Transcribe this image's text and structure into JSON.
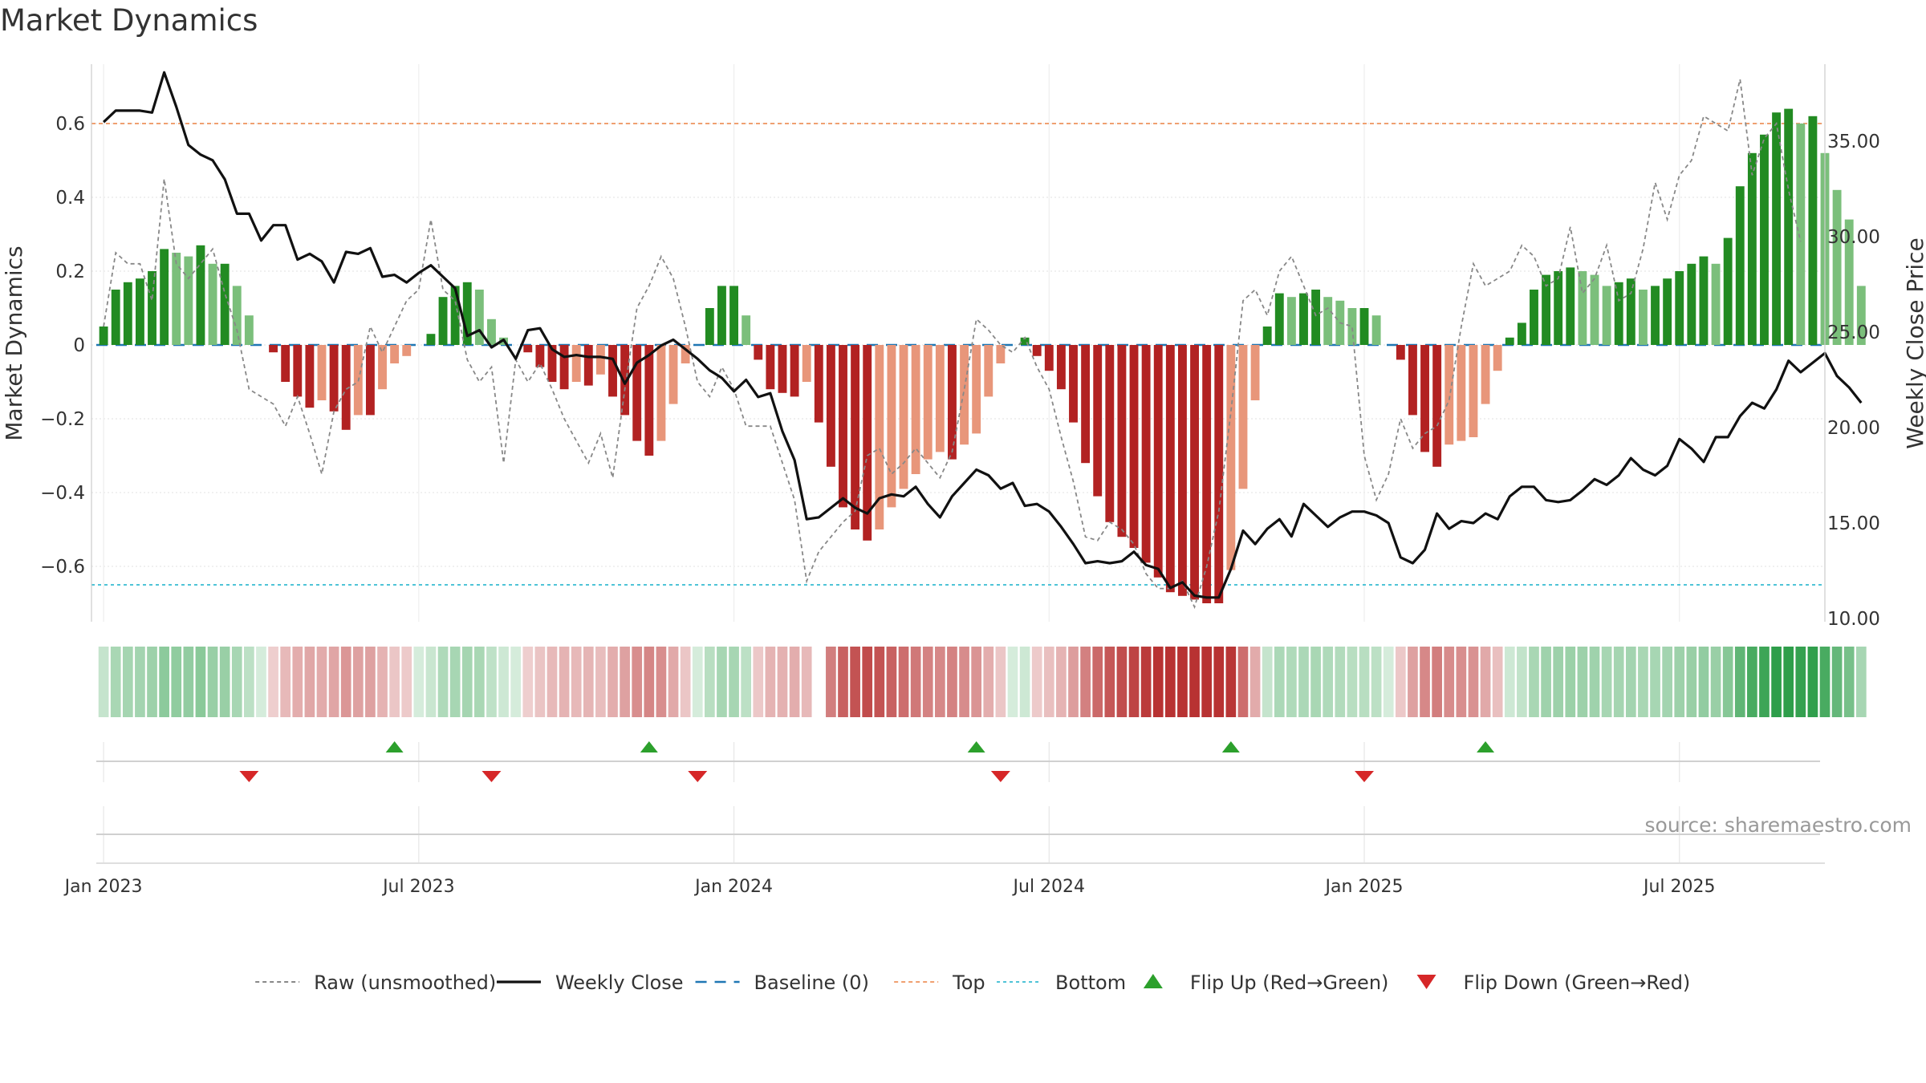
{
  "title": "Market Dynamics",
  "source": "source: sharemaestro.com",
  "chart_data": {
    "type": "bar",
    "ylabel_left": "Market Dynamics",
    "ylabel_right": "Weekly Close Price",
    "ylim_left": [
      -0.75,
      0.75
    ],
    "ylim_right": [
      10,
      38
    ],
    "left_ticks": [
      {
        "v": 0.6,
        "label": "0.6"
      },
      {
        "v": 0.4,
        "label": "0.4"
      },
      {
        "v": 0.2,
        "label": "0.2"
      },
      {
        "v": 0,
        "label": "0"
      },
      {
        "v": -0.2,
        "label": "−0.2"
      },
      {
        "v": -0.4,
        "label": "−0.4"
      },
      {
        "v": -0.6,
        "label": "−0.6"
      }
    ],
    "right_ticks": [
      {
        "v": 35,
        "label": "35.00"
      },
      {
        "v": 30,
        "label": "30.00"
      },
      {
        "v": 25,
        "label": "25.00"
      },
      {
        "v": 20,
        "label": "20.00"
      },
      {
        "v": 15,
        "label": "15.00"
      },
      {
        "v": 10,
        "label": "10.00"
      }
    ],
    "x_ticks": [
      {
        "week": 0,
        "label": "Jan 2023"
      },
      {
        "week": 26,
        "label": "Jul 2023"
      },
      {
        "week": 52,
        "label": "Jan 2024"
      },
      {
        "week": 78,
        "label": "Jul 2024"
      },
      {
        "week": 104,
        "label": "Jan 2025"
      },
      {
        "week": 130,
        "label": "Jul 2025"
      }
    ],
    "x_range_weeks": [
      -1,
      142
    ],
    "top_level": 0.6,
    "bottom_level": -0.65,
    "baseline": 0,
    "momentum": [
      0.05,
      0.15,
      0.17,
      0.18,
      0.2,
      0.26,
      0.25,
      0.24,
      0.27,
      0.22,
      0.22,
      0.16,
      0.08,
      0,
      -0.02,
      -0.1,
      -0.14,
      -0.17,
      -0.15,
      -0.18,
      -0.23,
      -0.19,
      -0.19,
      -0.12,
      -0.05,
      -0.03,
      0,
      0.03,
      0.13,
      0.16,
      0.17,
      0.15,
      0.07,
      0.02,
      0,
      -0.02,
      -0.06,
      -0.1,
      -0.12,
      -0.1,
      -0.11,
      -0.08,
      -0.14,
      -0.19,
      -0.26,
      -0.3,
      -0.26,
      -0.16,
      -0.05,
      0,
      0.1,
      0.16,
      0.16,
      0.08,
      -0.04,
      -0.12,
      -0.13,
      -0.14,
      -0.1,
      -0.21,
      -0.33,
      -0.44,
      -0.5,
      -0.53,
      -0.5,
      -0.44,
      -0.39,
      -0.35,
      -0.31,
      -0.29,
      -0.31,
      -0.27,
      -0.24,
      -0.14,
      -0.05,
      0,
      0.02,
      -0.03,
      -0.07,
      -0.12,
      -0.21,
      -0.32,
      -0.41,
      -0.48,
      -0.52,
      -0.55,
      -0.59,
      -0.63,
      -0.67,
      -0.68,
      -0.69,
      -0.7,
      -0.7,
      -0.61,
      -0.39,
      -0.15,
      0.05,
      0.14,
      0.13,
      0.14,
      0.15,
      0.13,
      0.12,
      0.1,
      0.1,
      0.08,
      0,
      -0.04,
      -0.19,
      -0.29,
      -0.33,
      -0.27,
      -0.26,
      -0.25,
      -0.16,
      -0.07,
      0.02,
      0.06,
      0.15,
      0.19,
      0.2,
      0.21,
      0.2,
      0.19,
      0.16,
      0.17,
      0.18,
      0.15,
      0.16,
      0.18,
      0.2,
      0.22,
      0.24,
      0.22,
      0.29,
      0.43,
      0.52,
      0.57,
      0.63,
      0.64,
      0.6,
      0.62,
      0.52,
      0.42,
      0.34,
      0.16
    ],
    "raw_unsmoothed": [
      0.05,
      0.25,
      0.22,
      0.22,
      0.12,
      0.45,
      0.22,
      0.18,
      0.22,
      0.26,
      0.14,
      0.04,
      -0.12,
      -0.14,
      -0.16,
      -0.22,
      -0.14,
      -0.24,
      -0.35,
      -0.18,
      -0.12,
      -0.1,
      0.05,
      -0.02,
      0.05,
      0.12,
      0.15,
      0.34,
      0.15,
      0.12,
      -0.04,
      -0.1,
      -0.06,
      -0.32,
      -0.04,
      -0.1,
      -0.05,
      -0.12,
      -0.2,
      -0.26,
      -0.32,
      -0.24,
      -0.36,
      -0.12,
      0.1,
      0.16,
      0.24,
      0.18,
      0.05,
      -0.1,
      -0.14,
      -0.06,
      -0.12,
      -0.22,
      -0.22,
      -0.22,
      -0.32,
      -0.42,
      -0.64,
      -0.56,
      -0.52,
      -0.48,
      -0.45,
      -0.3,
      -0.28,
      -0.35,
      -0.32,
      -0.28,
      -0.32,
      -0.36,
      -0.29,
      -0.12,
      0.07,
      0.04,
      0.0,
      -0.02,
      0.02,
      -0.06,
      -0.12,
      -0.25,
      -0.37,
      -0.52,
      -0.53,
      -0.48,
      -0.5,
      -0.54,
      -0.62,
      -0.66,
      -0.66,
      -0.64,
      -0.71,
      -0.6,
      -0.45,
      -0.18,
      0.12,
      0.15,
      0.08,
      0.2,
      0.24,
      0.16,
      0.08,
      0.1,
      0.06,
      0.05,
      -0.3,
      -0.42,
      -0.35,
      -0.2,
      -0.28,
      -0.24,
      -0.22,
      -0.15,
      0.05,
      0.22,
      0.16,
      0.18,
      0.2,
      0.27,
      0.24,
      0.16,
      0.18,
      0.32,
      0.14,
      0.18,
      0.27,
      0.12,
      0.14,
      0.26,
      0.44,
      0.34,
      0.46,
      0.5,
      0.62,
      0.6,
      0.58,
      0.72,
      0.46,
      0.56,
      0.6,
      0.42,
      0.28
    ],
    "weekly_close": [
      36,
      36.6,
      36.6,
      36.6,
      36.5,
      38.6,
      36.8,
      34.8,
      34.3,
      34,
      33,
      31.2,
      31.2,
      29.8,
      30.6,
      30.6,
      28.8,
      29.1,
      28.7,
      27.6,
      29.2,
      29.1,
      29.4,
      27.9,
      28,
      27.6,
      28.1,
      28.5,
      27.9,
      27.3,
      24.8,
      25.1,
      24.2,
      24.6,
      23.6,
      25.1,
      25.2,
      24.1,
      23.7,
      23.8,
      23.7,
      23.7,
      23.6,
      22.3,
      23.4,
      23.8,
      24.3,
      24.6,
      24.1,
      23.6,
      23,
      22.6,
      21.9,
      22.5,
      21.6,
      21.8,
      19.8,
      18.3,
      15.2,
      15.3,
      15.8,
      16.3,
      15.8,
      15.5,
      16.3,
      16.5,
      16.4,
      16.9,
      16,
      15.3,
      16.4,
      17.1,
      17.8,
      17.5,
      16.8,
      17.1,
      15.9,
      16,
      15.6,
      14.8,
      13.9,
      12.9,
      13,
      12.9,
      13,
      13.5,
      12.8,
      12.6,
      11.6,
      11.9,
      11.2,
      11.1,
      11.1,
      12.6,
      14.6,
      13.9,
      14.7,
      15.2,
      14.3,
      16,
      15.4,
      14.8,
      15.3,
      15.6,
      15.6,
      15.4,
      15,
      13.2,
      12.9,
      13.6,
      15.5,
      14.7,
      15.1,
      15,
      15.5,
      15.2,
      16.4,
      16.9,
      16.9,
      16.2,
      16.1,
      16.2,
      16.7,
      17.3,
      17,
      17.5,
      18.4,
      17.8,
      17.5,
      18,
      19.4,
      18.9,
      18.2,
      19.5,
      19.5,
      20.6,
      21.3,
      21.0,
      22.0,
      23.5,
      22.9,
      23.4,
      23.9,
      22.7,
      22.1,
      21.3
    ],
    "flips_up_weeks": [
      24,
      45,
      72,
      93,
      114
    ],
    "flips_down_weeks": [
      12,
      32,
      49,
      74,
      104
    ],
    "strip_gap_weeks": [
      59
    ],
    "colors": {
      "strong_green": "#228B22",
      "light_green": "#7BBF7B",
      "strong_red": "#B22222",
      "light_red": "#E8967A",
      "weekly_close": "#111111",
      "raw": "#888888",
      "baseline": "#1f77b4",
      "top": "#F0A070",
      "bottom": "#4FC3D7",
      "flip_up": "#2CA02C",
      "flip_down": "#D62728"
    },
    "legend_position": "bottom-center",
    "legend": [
      {
        "key": "raw",
        "label": "Raw (unsmoothed)"
      },
      {
        "key": "close",
        "label": "Weekly Close"
      },
      {
        "key": "baseline",
        "label": "Baseline (0)"
      },
      {
        "key": "top",
        "label": "Top"
      },
      {
        "key": "bottom",
        "label": "Bottom"
      },
      {
        "key": "flipup",
        "label": "Flip Up (Red→Green)"
      },
      {
        "key": "flipdown",
        "label": "Flip Down (Green→Red)"
      }
    ]
  }
}
